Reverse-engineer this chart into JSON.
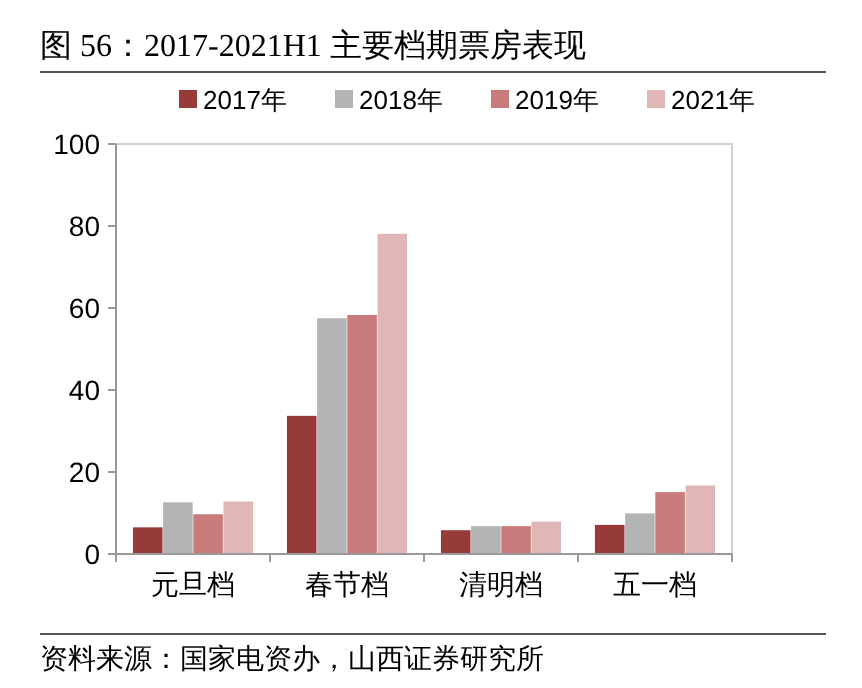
{
  "chart_data": {
    "type": "bar",
    "title": "图 56：2017-2021H1 主要档期票房表现",
    "categories": [
      "元旦档",
      "春节档",
      "清明档",
      "五一档"
    ],
    "series": [
      {
        "name": "2017年",
        "color": "#973a3a",
        "values": [
          6.5,
          33.7,
          5.8,
          7.1
        ]
      },
      {
        "name": "2018年",
        "color": "#b4b4b4",
        "values": [
          12.6,
          57.5,
          6.8,
          9.9
        ]
      },
      {
        "name": "2019年",
        "color": "#c97b7b",
        "values": [
          9.7,
          58.3,
          6.8,
          15.1
        ]
      },
      {
        "name": "2021年",
        "color": "#e0b6b6",
        "values": [
          12.8,
          78.1,
          7.9,
          16.7
        ]
      }
    ],
    "ylim": [
      0,
      100
    ],
    "yticks": [
      0,
      20,
      40,
      60,
      80,
      100
    ],
    "grid": false,
    "legend": "top",
    "annotations": [
      "资料来源：国家电资办，山西证券研究所"
    ]
  }
}
